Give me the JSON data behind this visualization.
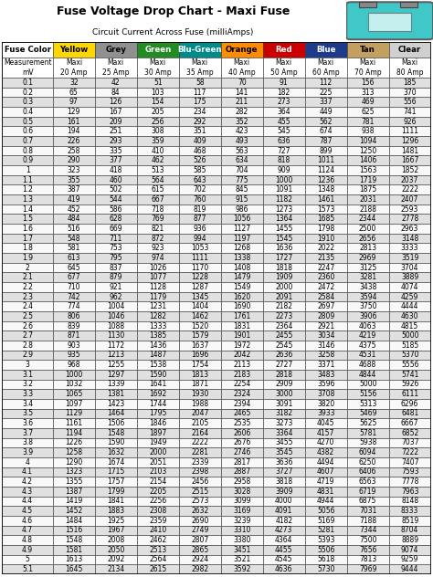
{
  "title": "Fuse Voltage Drop Chart - Maxi Fuse",
  "subtitle": "Circuit Current Across Fuse (milliAmps)",
  "col_headers": [
    "Fuse Color",
    "Yellow",
    "Grey",
    "Green",
    "Blu-Green",
    "Orange",
    "Red",
    "Blue",
    "Tan",
    "Clear"
  ],
  "col_subheaders": [
    "Measurement\nmV",
    "Maxi\n20 Amp",
    "Maxi\n25 Amp",
    "Maxi\n30 Amp",
    "Maxi\n35 Amp",
    "Maxi\n40 Amp",
    "Maxi\n50 Amp",
    "Maxi\n60 Amp",
    "Maxi\n70 Amp",
    "Maxi\n80 Amp"
  ],
  "header_fill_colors": [
    "#ffffff",
    "#FFD700",
    "#909090",
    "#228B22",
    "#008B8B",
    "#FF8C00",
    "#CC0000",
    "#1E3A8A",
    "#C4A060",
    "#D0D0D0"
  ],
  "header_text_colors": [
    "#000000",
    "#000000",
    "#000000",
    "#ffffff",
    "#ffffff",
    "#000000",
    "#ffffff",
    "#ffffff",
    "#000000",
    "#000000"
  ],
  "measurements": [
    0.1,
    0.2,
    0.3,
    0.4,
    0.5,
    0.6,
    0.7,
    0.8,
    0.9,
    1,
    1.1,
    1.2,
    1.3,
    1.4,
    1.5,
    1.6,
    1.7,
    1.8,
    1.9,
    2,
    2.1,
    2.2,
    2.3,
    2.4,
    2.5,
    2.6,
    2.7,
    2.8,
    2.9,
    3,
    3.1,
    3.2,
    3.3,
    3.4,
    3.5,
    3.6,
    3.7,
    3.8,
    3.9,
    4,
    4.1,
    4.2,
    4.3,
    4.4,
    4.5,
    4.6,
    4.7,
    4.8,
    4.9,
    5,
    5.1
  ],
  "data": [
    [
      32,
      42,
      51,
      58,
      70,
      91,
      112,
      156,
      185
    ],
    [
      65,
      84,
      103,
      117,
      141,
      182,
      225,
      313,
      370
    ],
    [
      97,
      126,
      154,
      175,
      211,
      273,
      337,
      469,
      556
    ],
    [
      129,
      167,
      205,
      234,
      282,
      364,
      449,
      625,
      741
    ],
    [
      161,
      209,
      256,
      292,
      352,
      455,
      562,
      781,
      926
    ],
    [
      194,
      251,
      308,
      351,
      423,
      545,
      674,
      938,
      1111
    ],
    [
      226,
      293,
      359,
      409,
      493,
      636,
      787,
      1094,
      1296
    ],
    [
      258,
      335,
      410,
      468,
      563,
      727,
      899,
      1250,
      1481
    ],
    [
      290,
      377,
      462,
      526,
      634,
      818,
      1011,
      1406,
      1667
    ],
    [
      323,
      418,
      513,
      585,
      704,
      909,
      1124,
      1563,
      1852
    ],
    [
      355,
      460,
      564,
      643,
      775,
      1000,
      1236,
      1719,
      2037
    ],
    [
      387,
      502,
      615,
      702,
      845,
      1091,
      1348,
      1875,
      2222
    ],
    [
      419,
      544,
      667,
      760,
      915,
      1182,
      1461,
      2031,
      2407
    ],
    [
      452,
      586,
      718,
      819,
      986,
      1273,
      1573,
      2188,
      2593
    ],
    [
      484,
      628,
      769,
      877,
      1056,
      1364,
      1685,
      2344,
      2778
    ],
    [
      516,
      669,
      821,
      936,
      1127,
      1455,
      1798,
      2500,
      2963
    ],
    [
      548,
      711,
      872,
      994,
      1197,
      1545,
      1910,
      2656,
      3148
    ],
    [
      581,
      753,
      923,
      1053,
      1268,
      1636,
      2022,
      2813,
      3333
    ],
    [
      613,
      795,
      974,
      1111,
      1338,
      1727,
      2135,
      2969,
      3519
    ],
    [
      645,
      837,
      1026,
      1170,
      1408,
      1818,
      2247,
      3125,
      3704
    ],
    [
      677,
      879,
      1077,
      1228,
      1479,
      1909,
      2360,
      3281,
      3889
    ],
    [
      710,
      921,
      1128,
      1287,
      1549,
      2000,
      2472,
      3438,
      4074
    ],
    [
      742,
      962,
      1179,
      1345,
      1620,
      2091,
      2584,
      3594,
      4259
    ],
    [
      774,
      1004,
      1231,
      1404,
      1690,
      2182,
      2697,
      3750,
      4444
    ],
    [
      806,
      1046,
      1282,
      1462,
      1761,
      2273,
      2809,
      3906,
      4630
    ],
    [
      839,
      1088,
      1333,
      1520,
      1831,
      2364,
      2921,
      4063,
      4815
    ],
    [
      871,
      1130,
      1385,
      1579,
      1901,
      2455,
      3034,
      4219,
      5000
    ],
    [
      903,
      1172,
      1436,
      1637,
      1972,
      2545,
      3146,
      4375,
      5185
    ],
    [
      935,
      1213,
      1487,
      1696,
      2042,
      2636,
      3258,
      4531,
      5370
    ],
    [
      968,
      1255,
      1538,
      1754,
      2113,
      2727,
      3371,
      4688,
      5556
    ],
    [
      1000,
      1297,
      1590,
      1813,
      2183,
      2818,
      3483,
      4844,
      5741
    ],
    [
      1032,
      1339,
      1641,
      1871,
      2254,
      2909,
      3596,
      5000,
      5926
    ],
    [
      1065,
      1381,
      1692,
      1930,
      2324,
      3000,
      3708,
      5156,
      6111
    ],
    [
      1097,
      1423,
      1744,
      1988,
      2394,
      3091,
      3820,
      5313,
      6296
    ],
    [
      1129,
      1464,
      1795,
      2047,
      2465,
      3182,
      3933,
      5469,
      6481
    ],
    [
      1161,
      1506,
      1846,
      2105,
      2535,
      3273,
      4045,
      5625,
      6667
    ],
    [
      1194,
      1548,
      1897,
      2164,
      2606,
      3364,
      4157,
      5781,
      6852
    ],
    [
      1226,
      1590,
      1949,
      2222,
      2676,
      3455,
      4270,
      5938,
      7037
    ],
    [
      1258,
      1632,
      2000,
      2281,
      2746,
      3545,
      4382,
      6094,
      7222
    ],
    [
      1290,
      1674,
      2051,
      2339,
      2817,
      3636,
      4494,
      6250,
      7407
    ],
    [
      1323,
      1715,
      2103,
      2398,
      2887,
      3727,
      4607,
      6406,
      7593
    ],
    [
      1355,
      1757,
      2154,
      2456,
      2958,
      3818,
      4719,
      6563,
      7778
    ],
    [
      1387,
      1799,
      2205,
      2515,
      3028,
      3909,
      4831,
      6719,
      7963
    ],
    [
      1419,
      1841,
      2256,
      2573,
      3099,
      4000,
      4944,
      6875,
      8148
    ],
    [
      1452,
      1883,
      2308,
      2632,
      3169,
      4091,
      5056,
      7031,
      8333
    ],
    [
      1484,
      1925,
      2359,
      2690,
      3239,
      4182,
      5169,
      7188,
      8519
    ],
    [
      1516,
      1967,
      2410,
      2749,
      3310,
      4273,
      5281,
      7344,
      8704
    ],
    [
      1548,
      2008,
      2462,
      2807,
      3380,
      4364,
      5393,
      7500,
      8889
    ],
    [
      1581,
      2050,
      2513,
      2865,
      3451,
      4455,
      5506,
      7656,
      9074
    ],
    [
      1613,
      2092,
      2564,
      2924,
      3521,
      4545,
      5618,
      7813,
      9259
    ],
    [
      1645,
      2134,
      2615,
      2982,
      3592,
      4636,
      5730,
      7969,
      9444
    ]
  ],
  "title_fontsize": 9,
  "subtitle_fontsize": 6.5,
  "header_fontsize": 6.2,
  "subheader_fontsize": 5.5,
  "data_fontsize": 5.5,
  "meas_fontsize": 5.5,
  "even_row_color": "#e0e0e0",
  "odd_row_color": "#f8f8f8",
  "fuse_color": "#40C8C8"
}
